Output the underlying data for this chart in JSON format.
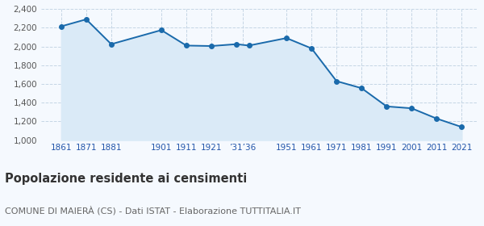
{
  "years": [
    1861,
    1871,
    1881,
    1901,
    1911,
    1921,
    1931,
    1936,
    1951,
    1961,
    1971,
    1981,
    1991,
    2001,
    2011,
    2021
  ],
  "population": [
    2215,
    2290,
    2025,
    2175,
    2010,
    2005,
    2025,
    2010,
    2090,
    1980,
    1630,
    1555,
    1360,
    1340,
    1230,
    1140
  ],
  "xtick_positions": [
    1861,
    1871,
    1881,
    1901,
    1911,
    1921,
    1933.5,
    1951,
    1961,
    1971,
    1981,
    1991,
    2001,
    2011,
    2021
  ],
  "xtick_labels": [
    "1861",
    "1871",
    "1881",
    "1901",
    "1911",
    "1921",
    "’31’36",
    "1951",
    "1961",
    "1971",
    "1981",
    "1991",
    "2001",
    "2011",
    "2021"
  ],
  "line_color": "#1a6aab",
  "fill_color": "#daeaf7",
  "marker_color": "#1a6aab",
  "bg_color": "#f5f9fe",
  "grid_color": "#c5d5e5",
  "ylim": [
    1000,
    2400
  ],
  "yticks": [
    1000,
    1200,
    1400,
    1600,
    1800,
    2000,
    2200,
    2400
  ],
  "xlim_left": 1853,
  "xlim_right": 2027,
  "title": "Popolazione residente ai censimenti",
  "subtitle": "COMUNE DI MAIERÀ (CS) - Dati ISTAT - Elaborazione TUTTITALIA.IT",
  "title_fontsize": 10.5,
  "subtitle_fontsize": 8,
  "tick_fontsize": 7.5,
  "ytick_fontsize": 7.5
}
